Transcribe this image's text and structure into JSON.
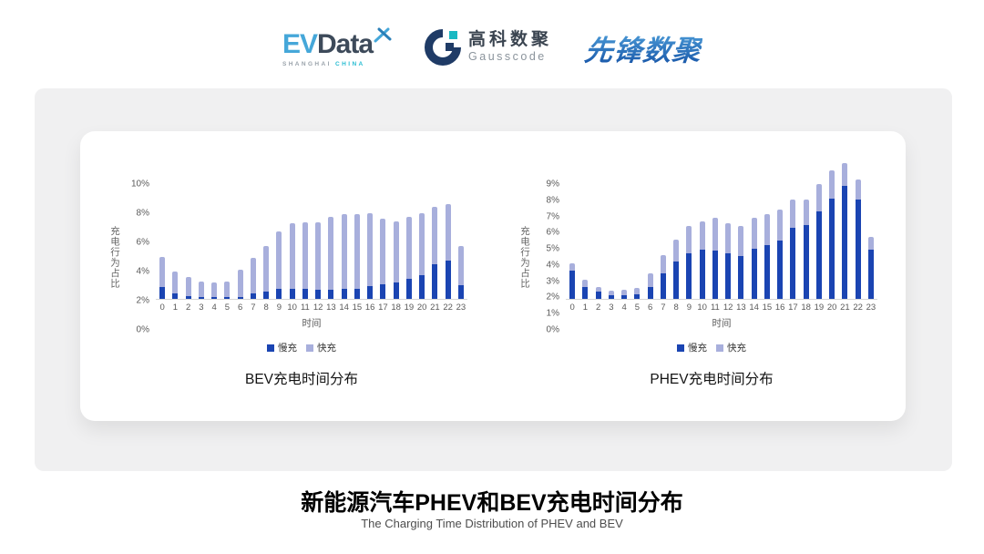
{
  "header": {
    "logos": {
      "evdata": {
        "ev": "EV",
        "data": "Data",
        "sub1": "SHANGHAI",
        "sub2": "CHINA"
      },
      "gausscode": {
        "cn": "高科数聚",
        "en": "Gausscode"
      },
      "xianfeng": "先锋数聚"
    }
  },
  "colors": {
    "slow": "#1a44b2",
    "fast": "#a8afdc",
    "evdata_blue": "#45a7d9",
    "evdata_dark": "#3d4a5a",
    "gausscode_navy": "#1f3b66",
    "gausscode_teal": "#19b9c3",
    "xianfeng_blue": "#2d7ac6"
  },
  "chart_data": [
    {
      "type": "bar",
      "stacked": true,
      "title": "BEV充电时间分布",
      "xlabel": "时间",
      "ylabel": "充电行为占比",
      "categories": [
        "0",
        "1",
        "2",
        "3",
        "4",
        "5",
        "6",
        "7",
        "8",
        "9",
        "10",
        "11",
        "12",
        "13",
        "14",
        "15",
        "16",
        "17",
        "18",
        "19",
        "20",
        "21",
        "22",
        "23"
      ],
      "ylim": [
        0,
        10
      ],
      "ytick_step": 2,
      "ytick_suffix": "%",
      "grid": false,
      "legend_position": "bottom",
      "series": [
        {
          "name": "慢充",
          "color": "#1a44b2",
          "values": [
            0.8,
            0.35,
            0.2,
            0.1,
            0.1,
            0.1,
            0.15,
            0.35,
            0.5,
            0.7,
            0.7,
            0.7,
            0.6,
            0.6,
            0.7,
            0.7,
            0.85,
            1.0,
            1.1,
            1.35,
            1.65,
            2.35,
            2.6,
            0.95
          ]
        },
        {
          "name": "快充",
          "color": "#a8afdc",
          "values": [
            2.1,
            1.55,
            1.3,
            1.1,
            1.0,
            1.1,
            1.85,
            2.45,
            3.1,
            3.9,
            4.5,
            4.55,
            4.65,
            5.05,
            5.1,
            5.1,
            5.0,
            4.5,
            4.2,
            4.25,
            4.25,
            3.95,
            3.9,
            2.65
          ]
        }
      ]
    },
    {
      "type": "bar",
      "stacked": true,
      "title": "PHEV充电时间分布",
      "xlabel": "时间",
      "ylabel": "充电行为占比",
      "categories": [
        "0",
        "1",
        "2",
        "3",
        "4",
        "5",
        "6",
        "7",
        "8",
        "9",
        "10",
        "11",
        "12",
        "13",
        "14",
        "15",
        "16",
        "17",
        "18",
        "19",
        "20",
        "21",
        "22",
        "23"
      ],
      "ylim": [
        0,
        9
      ],
      "ytick_step": 1,
      "ytick_suffix": "%",
      "grid": false,
      "legend_position": "bottom",
      "series": [
        {
          "name": "慢充",
          "color": "#1a44b2",
          "values": [
            1.75,
            0.75,
            0.45,
            0.25,
            0.25,
            0.3,
            0.75,
            1.6,
            2.3,
            2.8,
            3.05,
            3.0,
            2.8,
            2.65,
            3.1,
            3.3,
            3.6,
            4.4,
            4.55,
            5.4,
            6.2,
            7.0,
            6.15,
            3.05
          ]
        },
        {
          "name": "快充",
          "color": "#a8afdc",
          "values": [
            0.45,
            0.45,
            0.3,
            0.25,
            0.3,
            0.4,
            0.85,
            1.1,
            1.35,
            1.7,
            1.75,
            2.0,
            1.85,
            1.85,
            1.9,
            1.95,
            1.9,
            1.75,
            1.6,
            1.7,
            1.75,
            1.4,
            1.2,
            0.8
          ]
        }
      ]
    }
  ],
  "footer": {
    "title": "新能源汽车PHEV和BEV充电时间分布",
    "subtitle": "The Charging Time Distribution of PHEV and BEV"
  }
}
